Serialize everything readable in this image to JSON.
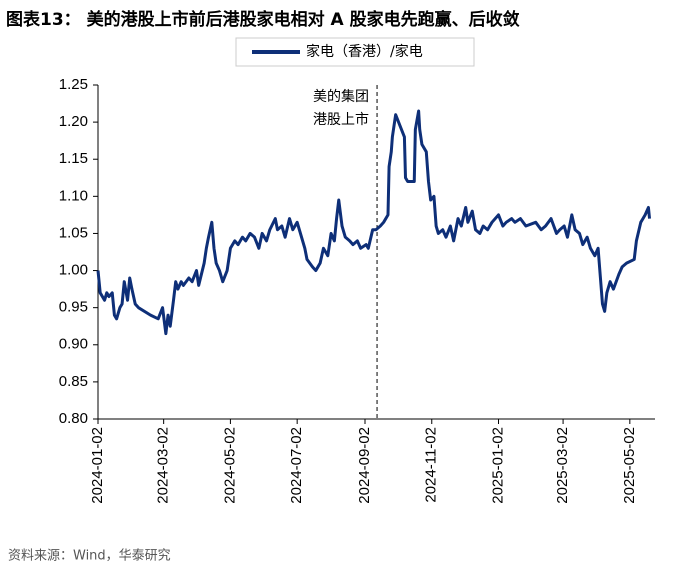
{
  "chart_data": {
    "type": "line",
    "title": "图表13：  美的港股上市前后港股家电相对 A 股家电先跑赢、后收敛",
    "source": "资料来源：Wind，华泰研究",
    "annotation": [
      "美的集团",
      "港股上市"
    ],
    "annotation_x": "2024-09-13",
    "xlim": [
      "2024-01-02",
      "2025-05-25"
    ],
    "xticks": [
      "2024-01-02",
      "2024-03-02",
      "2024-05-02",
      "2024-07-02",
      "2024-09-02",
      "2024-11-02",
      "2025-01-02",
      "2025-03-02",
      "2025-05-02"
    ],
    "ylim": [
      0.8,
      1.25
    ],
    "yticks": [
      {
        "value": 0.8,
        "label": "0.80"
      },
      0.85,
      {
        "value": 0.9,
        "label": "0.90"
      },
      0.95,
      {
        "value": 1.0,
        "label": "1.00"
      },
      1.05,
      {
        "value": 1.1,
        "label": "1.10"
      },
      1.15,
      {
        "value": 1.2,
        "label": "1.20"
      },
      1.25
    ],
    "grid": false,
    "legend": "top",
    "x": [
      "2024-01-02",
      "2024-01-04",
      "2024-01-08",
      "2024-01-10",
      "2024-01-12",
      "2024-01-15",
      "2024-01-17",
      "2024-01-19",
      "2024-01-22",
      "2024-01-24",
      "2024-01-26",
      "2024-01-29",
      "2024-01-31",
      "2024-02-02",
      "2024-02-05",
      "2024-02-08",
      "2024-02-19",
      "2024-02-26",
      "2024-03-01",
      "2024-03-04",
      "2024-03-06",
      "2024-03-08",
      "2024-03-11",
      "2024-03-13",
      "2024-03-15",
      "2024-03-18",
      "2024-03-20",
      "2024-03-25",
      "2024-03-28",
      "2024-04-01",
      "2024-04-03",
      "2024-04-08",
      "2024-04-10",
      "2024-04-12",
      "2024-04-15",
      "2024-04-17",
      "2024-04-19",
      "2024-04-22",
      "2024-04-25",
      "2024-04-29",
      "2024-05-02",
      "2024-05-06",
      "2024-05-09",
      "2024-05-13",
      "2024-05-16",
      "2024-05-20",
      "2024-05-24",
      "2024-05-28",
      "2024-05-31",
      "2024-06-04",
      "2024-06-07",
      "2024-06-12",
      "2024-06-14",
      "2024-06-18",
      "2024-06-21",
      "2024-06-25",
      "2024-06-28",
      "2024-07-02",
      "2024-07-05",
      "2024-07-09",
      "2024-07-11",
      "2024-07-16",
      "2024-07-19",
      "2024-07-23",
      "2024-07-26",
      "2024-07-30",
      "2024-08-02",
      "2024-08-05",
      "2024-08-07",
      "2024-08-09",
      "2024-08-12",
      "2024-08-15",
      "2024-08-19",
      "2024-08-22",
      "2024-08-26",
      "2024-08-29",
      "2024-09-03",
      "2024-09-05",
      "2024-09-09",
      "2024-09-12",
      "2024-09-16",
      "2024-09-19",
      "2024-09-23",
      "2024-09-24",
      "2024-09-26",
      "2024-09-27",
      "2024-09-30",
      "2024-10-08",
      "2024-10-09",
      "2024-10-11",
      "2024-10-15",
      "2024-10-17",
      "2024-10-18",
      "2024-10-21",
      "2024-10-22",
      "2024-10-24",
      "2024-10-28",
      "2024-10-30",
      "2024-11-01",
      "2024-11-04",
      "2024-11-06",
      "2024-11-08",
      "2024-11-12",
      "2024-11-15",
      "2024-11-19",
      "2024-11-22",
      "2024-11-26",
      "2024-11-29",
      "2024-12-03",
      "2024-12-05",
      "2024-12-09",
      "2024-12-12",
      "2024-12-16",
      "2024-12-19",
      "2024-12-23",
      "2024-12-27",
      "2025-01-02",
      "2025-01-06",
      "2025-01-09",
      "2025-01-14",
      "2025-01-17",
      "2025-01-22",
      "2025-01-27",
      "2025-02-05",
      "2025-02-10",
      "2025-02-14",
      "2025-02-19",
      "2025-02-24",
      "2025-02-27",
      "2025-03-03",
      "2025-03-06",
      "2025-03-10",
      "2025-03-13",
      "2025-03-17",
      "2025-03-20",
      "2025-03-24",
      "2025-03-27",
      "2025-03-31",
      "2025-04-03",
      "2025-04-07",
      "2025-04-09",
      "2025-04-11",
      "2025-04-14",
      "2025-04-17",
      "2025-04-22",
      "2025-04-25",
      "2025-04-29",
      "2025-05-06",
      "2025-05-08",
      "2025-05-12",
      "2025-05-14",
      "2025-05-16",
      "2025-05-19",
      "2025-05-20"
    ],
    "series": [
      {
        "name": "家电（香港）/家电",
        "color": "#0e2f78",
        "values": [
          1.0,
          0.97,
          0.96,
          0.97,
          0.965,
          0.97,
          0.94,
          0.935,
          0.95,
          0.955,
          0.985,
          0.96,
          0.99,
          0.975,
          0.955,
          0.95,
          0.94,
          0.935,
          0.95,
          0.915,
          0.94,
          0.925,
          0.96,
          0.985,
          0.975,
          0.985,
          0.98,
          0.99,
          0.985,
          1.0,
          0.98,
          1.01,
          1.03,
          1.045,
          1.065,
          1.03,
          1.01,
          1.0,
          0.985,
          1.0,
          1.03,
          1.04,
          1.035,
          1.045,
          1.04,
          1.05,
          1.045,
          1.03,
          1.05,
          1.04,
          1.055,
          1.07,
          1.055,
          1.06,
          1.045,
          1.07,
          1.055,
          1.065,
          1.05,
          1.03,
          1.015,
          1.005,
          1.0,
          1.01,
          1.03,
          1.02,
          1.05,
          1.04,
          1.07,
          1.095,
          1.06,
          1.045,
          1.04,
          1.035,
          1.04,
          1.03,
          1.035,
          1.03,
          1.055,
          1.055,
          1.06,
          1.065,
          1.075,
          1.14,
          1.16,
          1.18,
          1.21,
          1.18,
          1.125,
          1.12,
          1.12,
          1.12,
          1.19,
          1.215,
          1.19,
          1.17,
          1.16,
          1.12,
          1.095,
          1.1,
          1.06,
          1.05,
          1.055,
          1.045,
          1.06,
          1.04,
          1.07,
          1.06,
          1.085,
          1.065,
          1.08,
          1.055,
          1.05,
          1.06,
          1.055,
          1.065,
          1.075,
          1.06,
          1.065,
          1.07,
          1.065,
          1.07,
          1.06,
          1.065,
          1.055,
          1.06,
          1.07,
          1.05,
          1.055,
          1.06,
          1.045,
          1.075,
          1.055,
          1.05,
          1.035,
          1.045,
          1.03,
          1.02,
          1.03,
          0.955,
          0.945,
          0.97,
          0.985,
          0.975,
          0.995,
          1.005,
          1.01,
          1.015,
          1.04,
          1.065,
          1.07,
          1.075,
          1.085,
          1.07
        ]
      }
    ]
  }
}
